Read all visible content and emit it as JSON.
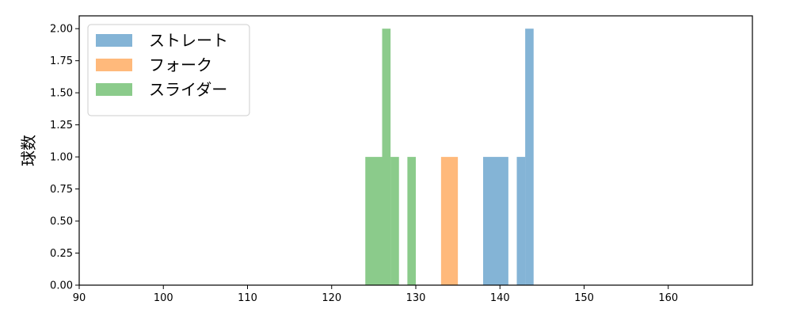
{
  "chart_data": {
    "type": "bar",
    "title": "",
    "xlabel": "",
    "ylabel": "球数",
    "xlim": [
      90,
      170
    ],
    "ylim": [
      0,
      2.1
    ],
    "xticks": [
      "90",
      "100",
      "110",
      "120",
      "130",
      "140",
      "150",
      "160"
    ],
    "yticks": [
      "0.00",
      "0.25",
      "0.50",
      "0.75",
      "1.00",
      "1.25",
      "1.50",
      "1.75",
      "2.00"
    ],
    "grid": false,
    "legend_placement": "top-left",
    "series": [
      {
        "name": "ストレート",
        "color": "#1f77b4",
        "bins": [
          [
            138,
            141,
            1
          ],
          [
            142,
            143,
            1
          ],
          [
            143,
            144,
            2
          ]
        ]
      },
      {
        "name": "フォーク",
        "color": "#ff7f0e",
        "bins": [
          [
            133,
            135,
            1
          ]
        ]
      },
      {
        "name": "スライダー",
        "color": "#2ca02c",
        "bins": [
          [
            124,
            126,
            1
          ],
          [
            126,
            127,
            2
          ],
          [
            127,
            128,
            1
          ],
          [
            129,
            130,
            1
          ]
        ]
      }
    ]
  }
}
